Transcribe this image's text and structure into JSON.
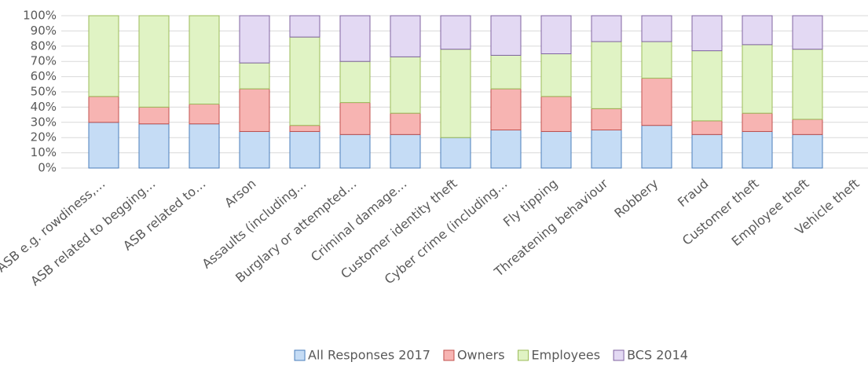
{
  "chart_data": {
    "type": "stacked_bar_100",
    "categories": [
      "ASB e.g. rowdiness,…",
      "ASB related to begging…",
      "ASB related to…",
      "Arson",
      "Assaults (including…",
      "Burglary or attempted…",
      "Criminal damage…",
      "Customer identity theft",
      "Cyber crime (including…",
      "Fly tipping",
      "Threatening behaviour",
      "Robbery",
      "Fraud",
      "Customer theft",
      "Employee theft",
      "Vehicle theft"
    ],
    "series": [
      {
        "name": "All Responses 2017",
        "color": "#4a7ebb",
        "fill": "#c5dcf5",
        "values": [
          30,
          29,
          29,
          24,
          24,
          22,
          22,
          20,
          25,
          24,
          25,
          28,
          22,
          24,
          22,
          null
        ]
      },
      {
        "name": "Owners",
        "color": "#c0504d",
        "fill": "#f7b4b2",
        "values": [
          17,
          11,
          13,
          28,
          4,
          21,
          14,
          0,
          27,
          23,
          14,
          31,
          9,
          12,
          10,
          null
        ]
      },
      {
        "name": "Employees",
        "color": "#9bbb59",
        "fill": "#e0f3c4",
        "values": [
          53,
          60,
          58,
          17,
          58,
          27,
          37,
          58,
          22,
          28,
          44,
          24,
          46,
          45,
          46,
          null
        ]
      },
      {
        "name": "BCS 2014",
        "color": "#8064a2",
        "fill": "#e3d9f3",
        "values": [
          0,
          0,
          0,
          31,
          14,
          30,
          27,
          22,
          26,
          25,
          17,
          17,
          23,
          19,
          22,
          null
        ]
      }
    ],
    "ylim": [
      0,
      100
    ],
    "yticks": [
      {
        "value": 0,
        "label": "0%"
      },
      {
        "value": 10,
        "label": "10%"
      },
      {
        "value": 20,
        "label": "20%"
      },
      {
        "value": 30,
        "label": "30%"
      },
      {
        "value": 40,
        "label": "40%"
      },
      {
        "value": 50,
        "label": "50%"
      },
      {
        "value": 60,
        "label": "60%"
      },
      {
        "value": 70,
        "label": "70%"
      },
      {
        "value": 80,
        "label": "80%"
      },
      {
        "value": 90,
        "label": "90%"
      },
      {
        "value": 100,
        "label": "100%"
      }
    ],
    "grid": true,
    "legend": "bottom"
  }
}
